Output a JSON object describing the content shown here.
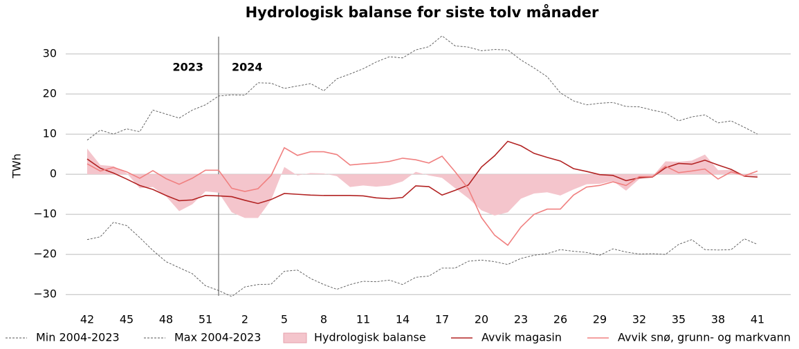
{
  "chart_data": {
    "type": "line",
    "title": "Hydrologisk balanse for siste tolv månader",
    "y_label": "TWh",
    "annotations": [
      "2023",
      "2024"
    ],
    "categories": [
      "42",
      null,
      null,
      "45",
      null,
      null,
      "48",
      null,
      null,
      "51",
      null,
      null,
      "2",
      null,
      null,
      "5",
      null,
      null,
      "8",
      null,
      null,
      "11",
      null,
      null,
      "14",
      null,
      null,
      "17",
      null,
      null,
      "20",
      null,
      null,
      "23",
      null,
      null,
      "26",
      null,
      null,
      "29",
      null,
      null,
      "32",
      null,
      null,
      "35",
      null,
      null,
      "38",
      null,
      null,
      "41"
    ],
    "ylim": [
      -31,
      35
    ],
    "yticks": [
      {
        "value": -30,
        "label": "−30"
      },
      {
        "value": -20,
        "label": "−20"
      },
      {
        "value": -10,
        "label": "−10"
      },
      0,
      10,
      20,
      30
    ],
    "grid": true,
    "series": [
      {
        "name": "Min 2004-2023",
        "style": "dashed",
        "color": "#555555",
        "values": [
          -16.3,
          -15.6,
          -12,
          -12.8,
          -15.8,
          -19,
          -21.8,
          -23.3,
          -24.8,
          -27.8,
          -29,
          -30.5,
          -28.1,
          -27.5,
          -27.4,
          -24.2,
          -23.9,
          -26,
          -27.5,
          -28.7,
          -27.5,
          -26.7,
          -26.8,
          -26.4,
          -27.5,
          -25.7,
          -25.4,
          -23.4,
          -23.4,
          -21.7,
          -21.4,
          -21.8,
          -22.5,
          -21,
          -20.2,
          -19.8,
          -18.8,
          -19.2,
          -19.5,
          -20.2,
          -18.6,
          -19.4,
          -19.9,
          -19.8,
          -20,
          -17.5,
          -16.3,
          -18.8,
          -18.9,
          -18.8,
          -16.1,
          -17.5
        ]
      },
      {
        "name": "Max 2004-2023",
        "style": "dashed",
        "color": "#555555",
        "values": [
          8.5,
          11,
          10,
          11.3,
          10.6,
          16,
          15,
          14,
          16,
          17.3,
          19.5,
          19.8,
          19.7,
          22.8,
          22.7,
          21.4,
          22,
          22.6,
          20.8,
          23.8,
          25,
          26.3,
          28,
          29.3,
          29,
          31,
          31.8,
          34.5,
          32,
          31.7,
          30.8,
          31.1,
          31,
          28.5,
          26.5,
          24.3,
          20.3,
          18.3,
          17.3,
          17.7,
          17.9,
          16.9,
          16.8,
          16,
          15.3,
          13.3,
          14.3,
          14.8,
          12.8,
          13.3,
          11.7,
          10
        ]
      },
      {
        "name": "Hydrologisk balanse",
        "style": "area",
        "color": "#f4c5cc",
        "values": [
          6.4,
          2.3,
          2,
          0.3,
          -3.5,
          -3.2,
          -5.5,
          -9.2,
          -7.5,
          -4.3,
          -4.6,
          -9.5,
          -10.9,
          -10.9,
          -6.4,
          1.8,
          -0.3,
          0.3,
          0.2,
          -0.5,
          -3.2,
          -2.8,
          -3.1,
          -2.8,
          -1.8,
          0.6,
          -0.3,
          -0.9,
          -3.5,
          -6,
          -9,
          -10.3,
          -9.5,
          -6.1,
          -4.8,
          -4.5,
          -5.3,
          -3.8,
          -2.5,
          -2.4,
          -1.7,
          -4.1,
          -1.2,
          -0.6,
          3.2,
          3.1,
          3.4,
          4.9,
          1,
          1.1,
          -0.3,
          -0.4
        ]
      },
      {
        "name": "Avvik magasin",
        "style": "line",
        "color": "#b22222",
        "values": [
          3.8,
          1.5,
          0.3,
          -1.2,
          -2.8,
          -3.8,
          -5.3,
          -6.6,
          -6.4,
          -5.3,
          -5.4,
          -5.6,
          -6.5,
          -7.3,
          -6.3,
          -4.8,
          -5,
          -5.2,
          -5.3,
          -5.3,
          -5.3,
          -5.4,
          -5.9,
          -6.1,
          -5.8,
          -2.9,
          -3.1,
          -5.2,
          -4,
          -2.7,
          1.8,
          4.6,
          8.2,
          7.1,
          5.2,
          4.2,
          3.3,
          1.4,
          0.7,
          -0.1,
          -0.3,
          -1.6,
          -0.9,
          -0.7,
          1.6,
          2.7,
          2.5,
          3.5,
          2.3,
          1.2,
          -0.5,
          -0.7
        ]
      },
      {
        "name": "Avvik snø, grunn- og markvann",
        "style": "line",
        "color": "#f08080",
        "values": [
          2.6,
          0.8,
          1.7,
          0.6,
          -1,
          0.9,
          -1.1,
          -2.5,
          -1,
          1,
          1,
          -3.5,
          -4.3,
          -3.6,
          -0.3,
          6.6,
          4.7,
          5.6,
          5.6,
          4.9,
          2.3,
          2.6,
          2.8,
          3.2,
          4,
          3.6,
          2.8,
          4.5,
          0.6,
          -3.6,
          -10.8,
          -15.2,
          -17.7,
          -13.2,
          -10,
          -8.7,
          -8.7,
          -5.2,
          -3.2,
          -2.8,
          -1.9,
          -2.8,
          -0.6,
          -0.6,
          2,
          0.4,
          0.8,
          1.3,
          -1.2,
          0.6,
          -0.4,
          0.8
        ]
      }
    ]
  }
}
